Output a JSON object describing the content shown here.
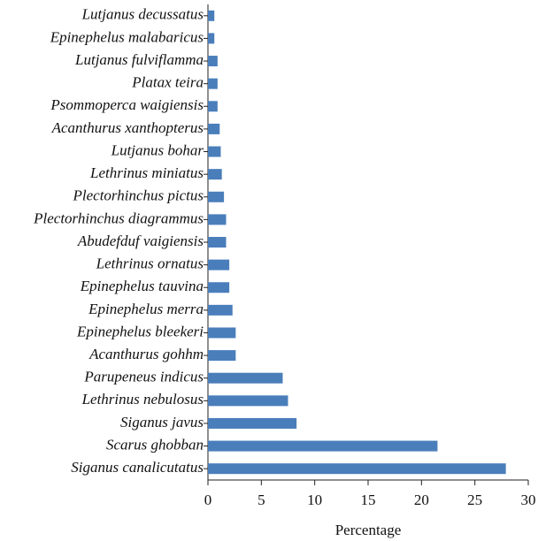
{
  "chart_data": {
    "type": "barh",
    "xlabel": "Percentage",
    "categories": [
      "Lutjanus decussatus",
      "Epinephelus malabaricus",
      "Lutjanus fulviflamma",
      "Platax teira",
      "Psommoperca waigiensis",
      "Acanthurus xanthopterus",
      "Lutjanus bohar",
      "Lethrinus miniatus",
      "Plectorhinchus pictus",
      "Plectorhinchus diagrammus",
      "Abudefduf vaigiensis",
      "Lethrinus ornatus",
      "Epinephelus tauvina",
      "Epinephelus merra",
      "Epinephelus bleekeri",
      "Acanthurus gohhm",
      "Parupeneus indicus",
      "Lethrinus nebulosus",
      "Siganus javus",
      "Scarus ghobban",
      "Siganus canalicutatus"
    ],
    "values": [
      0.6,
      0.6,
      0.9,
      0.9,
      0.9,
      1.1,
      1.2,
      1.3,
      1.5,
      1.7,
      1.7,
      2.0,
      2.0,
      2.3,
      2.6,
      2.6,
      7.0,
      7.5,
      8.3,
      21.5,
      27.9
    ],
    "color": "#4a7ebb",
    "xlim": [
      0,
      30
    ],
    "xticks": [
      0,
      5,
      10,
      15,
      20,
      25,
      30
    ]
  }
}
